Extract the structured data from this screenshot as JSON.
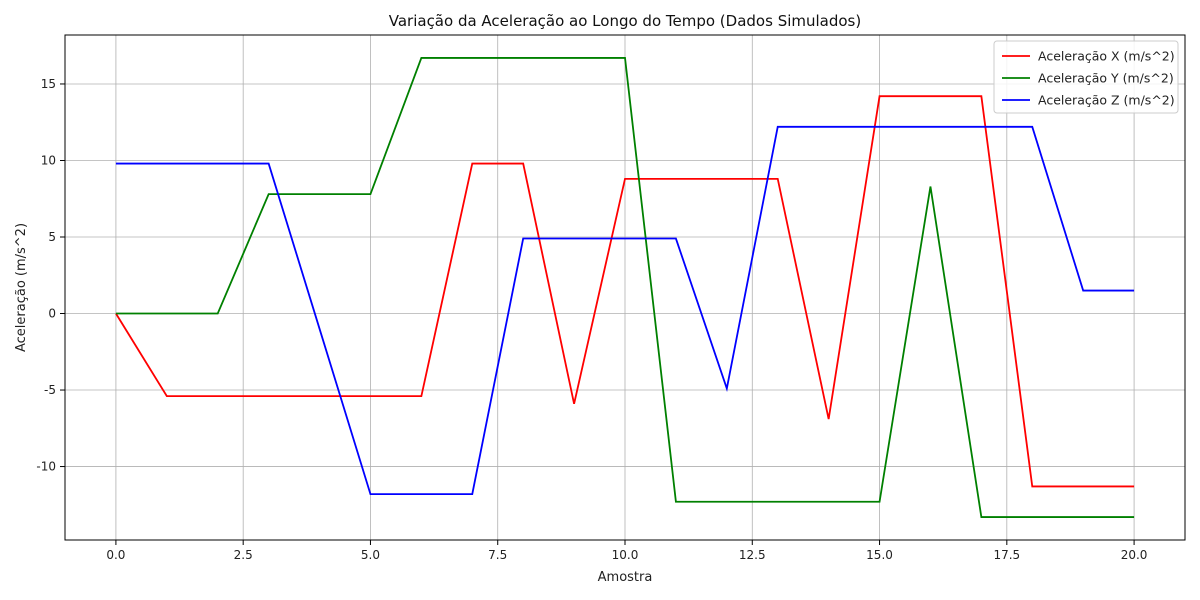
{
  "chart_data": {
    "type": "line",
    "title": "Variação da Aceleração ao Longo do Tempo (Dados Simulados)",
    "xlabel": "Amostra",
    "ylabel": "Aceleração (m/s^2)",
    "xlim": [
      -1,
      21
    ],
    "ylim": [
      -14.8,
      18.2
    ],
    "xticks": [
      0,
      2.5,
      5,
      7.5,
      10,
      12.5,
      15,
      17.5,
      20
    ],
    "xtick_labels": [
      "0.0",
      "2.5",
      "5.0",
      "7.5",
      "10.0",
      "12.5",
      "15.0",
      "17.5",
      "20.0"
    ],
    "yticks": [
      -10,
      -5,
      0,
      5,
      10,
      15
    ],
    "ytick_labels": [
      "-10",
      "-5",
      "0",
      "5",
      "10",
      "15"
    ],
    "grid": true,
    "legend_position": "top-right",
    "x": [
      0,
      1,
      2,
      3,
      4,
      5,
      6,
      7,
      8,
      9,
      10,
      11,
      12,
      13,
      14,
      15,
      16,
      17,
      18,
      19,
      20
    ],
    "series": [
      {
        "name": "Aceleração X (m/s^2)",
        "color": "#ff0000",
        "values": [
          0,
          -5.4,
          -5.4,
          -5.4,
          -5.4,
          -5.4,
          -5.4,
          9.8,
          9.8,
          -5.9,
          8.8,
          8.8,
          8.8,
          8.8,
          -6.9,
          14.2,
          14.2,
          14.2,
          -11.3,
          -11.3,
          -11.3
        ]
      },
      {
        "name": "Aceleração Y (m/s^2)",
        "color": "#008000",
        "values": [
          0,
          0,
          0,
          7.8,
          7.8,
          7.8,
          16.7,
          16.7,
          16.7,
          16.7,
          16.7,
          -12.3,
          -12.3,
          -12.3,
          -12.3,
          -12.3,
          8.3,
          -13.3,
          -13.3,
          -13.3,
          -13.3
        ]
      },
      {
        "name": "Aceleração Z (m/s^2)",
        "color": "#0000ff",
        "values": [
          9.8,
          9.8,
          9.8,
          9.8,
          -1.0,
          -11.8,
          -11.8,
          -11.8,
          4.9,
          4.9,
          4.9,
          4.9,
          -4.9,
          12.2,
          12.2,
          12.2,
          12.2,
          12.2,
          12.2,
          1.5,
          1.5
        ]
      }
    ]
  }
}
